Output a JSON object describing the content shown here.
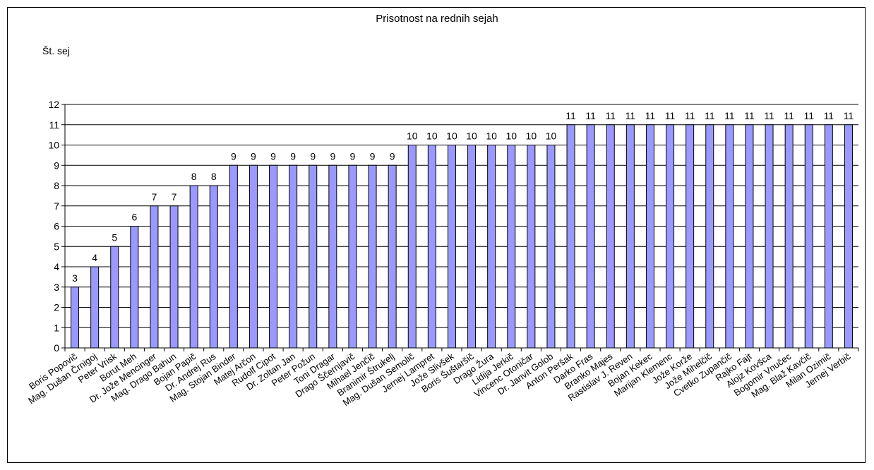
{
  "chart_data": {
    "type": "bar",
    "title": "Prisotnost na rednih sejah",
    "ylabel": "Št. sej",
    "xlabel": "",
    "ylim": [
      0,
      12
    ],
    "yticks": [
      0,
      1,
      2,
      3,
      4,
      5,
      6,
      7,
      8,
      9,
      10,
      11,
      12
    ],
    "grid": true,
    "legend": "none",
    "colors": {
      "bar_fill": "#9999ff",
      "bar_stroke": "#000000",
      "grid": "#000000"
    },
    "categories": [
      "Boris Popovič",
      "Mag. Dušan Črnigoj",
      "Peter Vrisk",
      "Borut Meh",
      "Dr. Jože Mencinger",
      "Mag. Drago Bahun",
      "Bojan Papič",
      "Dr. Andrej Rus",
      "Mag. Stojan Binder",
      "Matej Arčon",
      "Rudolf Cipot",
      "Dr. Zoltan Jan",
      "Peter Požun",
      "Toni Dragar",
      "Drago Ščernjavič",
      "Mihael Jenčič",
      "Branimir Štrukelj",
      "Mag. Dušan Semolič",
      "Jernej Lampret",
      "Jože Slivšek",
      "Boris Šuštaršič",
      "Drago Žura",
      "Lidija Jerkič",
      "Vincenc Otoničar",
      "Dr. Janvit Golob",
      "Anton Peršak",
      "Darko Fras",
      "Branko Majes",
      "Rastislav J. Reven",
      "Bojan Kekec",
      "Marijan Klemenc",
      "Jože Korže",
      "Jože Mihelčič",
      "Cvetko Zupančič",
      "Rajko Fajt",
      "Alojz Kovšca",
      "Bogomir Vnučec",
      "Mag. Blaž Kavčič",
      "Milan Ozimič",
      "Jernej Verbič"
    ],
    "values": [
      3,
      4,
      5,
      6,
      7,
      7,
      8,
      8,
      9,
      9,
      9,
      9,
      9,
      9,
      9,
      9,
      9,
      10,
      10,
      10,
      10,
      10,
      10,
      10,
      10,
      11,
      11,
      11,
      11,
      11,
      11,
      11,
      11,
      11,
      11,
      11,
      11,
      11,
      11,
      11
    ]
  }
}
